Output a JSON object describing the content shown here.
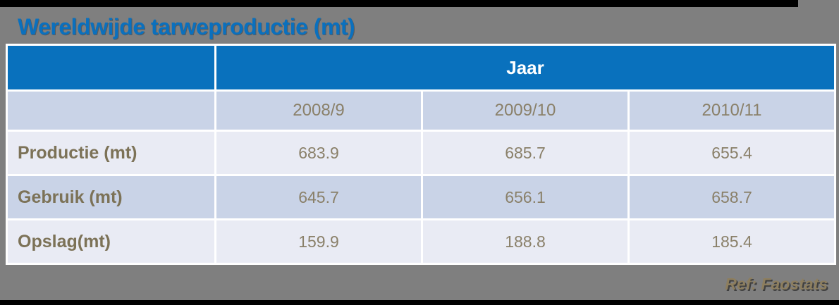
{
  "title": "Wereldwijde tarweproductie (mt)",
  "table": {
    "group_header": "Jaar",
    "columns": [
      "2008/9",
      "2009/10",
      "2010/11"
    ],
    "rows": [
      {
        "label": "Productie (mt)",
        "values": [
          "683.9",
          "685.7",
          "655.4"
        ]
      },
      {
        "label": "Gebruik (mt)",
        "values": [
          "645.7",
          "656.1",
          "658.7"
        ]
      },
      {
        "label": "Opslag(mt)",
        "values": [
          "159.9",
          "188.8",
          "185.4"
        ]
      }
    ]
  },
  "footer": {
    "ref": "Ref: Faostats"
  },
  "colors": {
    "background": "#7F7F7F",
    "accent_blue": "#0971BD",
    "title_blue": "#0A70BE",
    "row_light": "#E9EBF4",
    "row_mid": "#C9D3E7",
    "value_text": "#8A8069",
    "label_text": "#7C7257",
    "ref_text": "#8D7E5E"
  },
  "chart_data": {
    "type": "table",
    "title": "Wereldwijde tarweproductie (mt)",
    "group_header": "Jaar",
    "categories": [
      "2008/9",
      "2009/10",
      "2010/11"
    ],
    "series": [
      {
        "name": "Productie (mt)",
        "values": [
          683.9,
          685.7,
          655.4
        ]
      },
      {
        "name": "Gebruik (mt)",
        "values": [
          645.7,
          656.1,
          658.7
        ]
      },
      {
        "name": "Opslag(mt)",
        "values": [
          159.9,
          188.8,
          185.4
        ]
      }
    ],
    "unit": "mt",
    "source": "Ref: Faostats",
    "legend_position": "none",
    "grid": false
  }
}
